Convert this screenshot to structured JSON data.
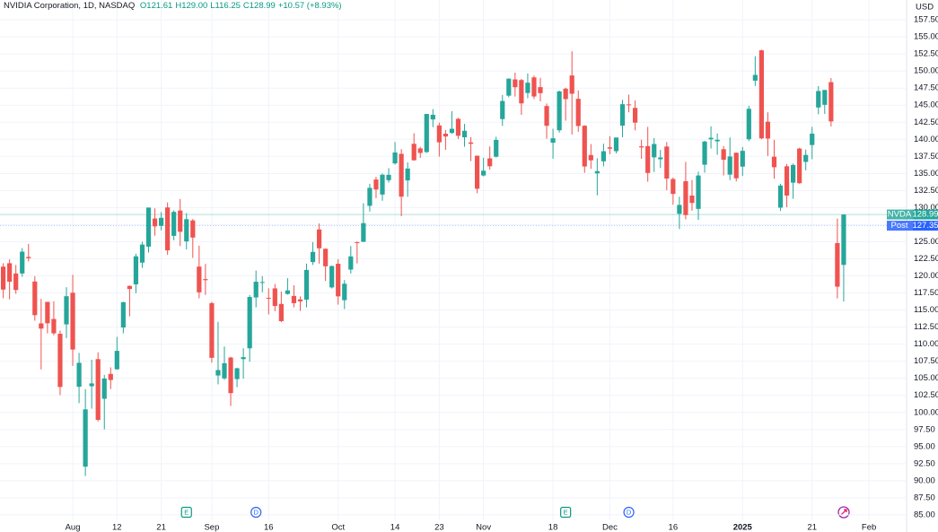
{
  "chart_data": {
    "type": "candlestick",
    "title": "NVIDIA Corporation, 1D, NASDAQ",
    "legend_values": [
      "O121.61",
      "H129.00",
      "L116.25",
      "C128.99",
      "+10.57 (+8.93%)"
    ],
    "currency": "USD",
    "up_color": "#26a69a",
    "down_color": "#ef5350",
    "grid": true,
    "categories": [
      null,
      null,
      null,
      null,
      null,
      null,
      null,
      null,
      null,
      null,
      null,
      "Aug",
      null,
      null,
      null,
      null,
      null,
      null,
      "12",
      null,
      null,
      null,
      null,
      null,
      null,
      "21",
      null,
      null,
      null,
      null,
      null,
      null,
      null,
      "Sep",
      null,
      null,
      null,
      null,
      null,
      null,
      null,
      null,
      "16",
      null,
      null,
      null,
      null,
      null,
      null,
      null,
      null,
      null,
      null,
      "Oct",
      null,
      null,
      null,
      null,
      null,
      null,
      null,
      null,
      "14",
      null,
      null,
      null,
      null,
      null,
      null,
      "23",
      null,
      null,
      null,
      null,
      null,
      null,
      "Nov",
      null,
      null,
      null,
      null,
      null,
      null,
      null,
      null,
      null,
      null,
      "18",
      null,
      null,
      null,
      null,
      null,
      null,
      null,
      null,
      "Dec",
      null,
      null,
      null,
      null,
      null,
      null,
      null,
      null,
      null,
      "16",
      null,
      null,
      null,
      null,
      null,
      null,
      null,
      null,
      null,
      null,
      "2025",
      null,
      null,
      null,
      null,
      null,
      null,
      null,
      null,
      null,
      null,
      "21",
      null,
      null,
      null,
      null,
      null,
      null,
      null,
      null,
      "Feb"
    ],
    "open": [
      121.35,
      121.85,
      120.35,
      120.35,
      122.78,
      119.17,
      113.04,
      116.19,
      113.69,
      111.52,
      112.9,
      117.53,
      103.76,
      92.06,
      103.84,
      107.81,
      102.0,
      105.64,
      106.32,
      112.44,
      118.53,
      118.76,
      121.94,
      124.28,
      128.4,
      127.32,
      130.02,
      125.86,
      129.57,
      125.05,
      128.12,
      121.36,
      119.53,
      116.01,
      105.41,
      104.99,
      108.04,
      104.88,
      107.81,
      109.39,
      116.84,
      119.08,
      116.79,
      118.17,
      115.89,
      117.35,
      117.06,
      116.55,
      116.52,
      122.02,
      126.8,
      123.97,
      118.31,
      121.77,
      116.44,
      120.92,
      124.94,
      124.99,
      130.26,
      134.11,
      131.91,
      134.01,
      136.47,
      137.87,
      133.98,
      139.34,
      138.67,
      138.13,
      142.91,
      142.03,
      140.82,
      140.93,
      143.0,
      140.29,
      139.54,
      137.6,
      134.7,
      137.21,
      137.45,
      142.96,
      146.39,
      148.77,
      148.68,
      146.78,
      149.07,
      147.64,
      144.87,
      139.5,
      141.32,
      147.41,
      149.35,
      145.93,
      141.99,
      137.7,
      135.01,
      136.78,
      138.83,
      138.26,
      142.0,
      145.11,
      144.6,
      138.97,
      139.01,
      137.36,
      137.08,
      138.94,
      134.18,
      129.09,
      133.86,
      131.76,
      129.81,
      136.28,
      140.0,
      139.7,
      138.55,
      134.83,
      138.03,
      136.0,
      140.01,
      148.59,
      153.03,
      142.58,
      137.45,
      129.99,
      136.05,
      133.65,
      138.64,
      136.69,
      139.16,
      144.66,
      145.05,
      148.37,
      124.8,
      121.61,
      null,
      null,
      null,
      null
    ],
    "high": [
      121.85,
      122.4,
      121.6,
      124.07,
      124.69,
      119.95,
      116.63,
      116.2,
      116.28,
      111.99,
      118.34,
      120.16,
      108.72,
      103.41,
      107.71,
      108.8,
      105.5,
      106.6,
      111.07,
      116.23,
      118.6,
      123.24,
      125.0,
      130.0,
      129.88,
      129.35,
      130.75,
      129.6,
      131.26,
      129.2,
      128.33,
      124.43,
      121.75,
      116.21,
      113.27,
      109.65,
      108.15,
      106.55,
      109.4,
      117.19,
      120.79,
      119.96,
      118.18,
      118.8,
      117.7,
      119.66,
      118.62,
      116.99,
      121.8,
      124.94,
      127.67,
      124.03,
      121.5,
      122.44,
      119.38,
      124.36,
      125.04,
      130.64,
      133.48,
      134.52,
      135.0,
      135.78,
      139.6,
      138.57,
      136.62,
      140.89,
      138.9,
      143.71,
      144.42,
      142.43,
      141.35,
      144.13,
      143.14,
      142.26,
      140.33,
      137.61,
      137.31,
      138.96,
      140.37,
      146.49,
      148.93,
      149.77,
      148.85,
      149.65,
      149.33,
      149.0,
      145.24,
      141.55,
      147.13,
      147.56,
      152.89,
      147.16,
      142.05,
      139.3,
      137.22,
      139.35,
      140.45,
      140.08,
      145.79,
      146.54,
      145.7,
      139.95,
      141.82,
      140.17,
      138.44,
      139.6,
      134.4,
      131.59,
      136.7,
      134.03,
      135.28,
      139.79,
      141.9,
      140.85,
      139.02,
      140.27,
      138.07,
      138.88,
      144.9,
      152.16,
      153.13,
      143.95,
      139.92,
      133.49,
      136.38,
      136.45,
      138.75,
      138.5,
      141.83,
      147.79,
      147.23,
      148.97,
      128.4,
      129.0,
      null,
      null,
      null,
      null
    ],
    "low": [
      116.72,
      116.56,
      117.37,
      119.86,
      122.1,
      113.44,
      106.3,
      111.58,
      111.3,
      102.54,
      110.88,
      106.81,
      101.37,
      90.69,
      100.55,
      98.69,
      97.52,
      103.43,
      106.26,
      111.58,
      114.07,
      117.47,
      121.18,
      123.42,
      125.89,
      126.66,
      123.1,
      125.22,
      124.37,
      123.88,
      122.64,
      116.71,
      117.22,
      107.29,
      104.12,
      104.76,
      100.95,
      103.69,
      104.95,
      107.42,
      115.38,
      117.6,
      114.36,
      114.83,
      113.22,
      117.25,
      115.39,
      114.86,
      115.38,
      121.61,
      121.8,
      119.26,
      118.15,
      115.79,
      115.14,
      120.34,
      121.83,
      124.95,
      129.42,
      131.38,
      131.0,
      133.66,
      136.3,
      128.74,
      131.58,
      136.87,
      137.28,
      138.0,
      141.78,
      137.46,
      138.46,
      140.8,
      140.05,
      138.9,
      136.81,
      132.11,
      134.57,
      135.57,
      137.33,
      141.96,
      146.17,
      146.26,
      143.57,
      146.01,
      145.9,
      145.55,
      140.08,
      137.15,
      140.99,
      142.73,
      140.7,
      141.1,
      135.1,
      135.67,
      131.8,
      136.05,
      137.82,
      137.95,
      140.3,
      143.95,
      141.31,
      137.13,
      133.79,
      135.21,
      135.8,
      132.54,
      130.42,
      126.86,
      128.28,
      129.55,
      128.22,
      135.12,
      138.65,
      137.73,
      134.71,
      134.02,
      133.83,
      134.63,
      139.73,
      147.82,
      140.01,
      137.56,
      134.22,
      129.51,
      130.05,
      131.29,
      133.49,
      135.46,
      137.09,
      143.67,
      143.72,
      141.88,
      116.7,
      116.25,
      null,
      null,
      null,
      null
    ],
    "close": [
      117.99,
      119.14,
      117.93,
      123.54,
      122.59,
      114.25,
      112.28,
      113.06,
      111.59,
      103.73,
      117.02,
      109.21,
      107.27,
      100.45,
      104.25,
      98.91,
      104.97,
      104.75,
      109.02,
      116.14,
      118.08,
      122.86,
      124.58,
      130.0,
      127.25,
      128.5,
      123.74,
      129.37,
      126.46,
      128.3,
      125.61,
      117.59,
      119.37,
      108.0,
      106.21,
      107.21,
      102.83,
      106.47,
      108.1,
      116.91,
      119.14,
      119.1,
      116.78,
      115.59,
      113.37,
      117.87,
      116.0,
      116.26,
      120.87,
      123.51,
      124.04,
      121.4,
      121.44,
      117.0,
      118.85,
      122.85,
      124.92,
      127.72,
      132.89,
      132.65,
      134.81,
      134.8,
      138.07,
      131.6,
      135.72,
      136.93,
      138.0,
      143.71,
      143.59,
      139.56,
      140.41,
      141.54,
      140.52,
      141.25,
      139.34,
      132.76,
      135.4,
      136.05,
      139.91,
      145.61,
      148.88,
      147.63,
      145.26,
      148.29,
      146.27,
      146.76,
      141.98,
      140.15,
      147.01,
      145.89,
      146.67,
      141.95,
      136.02,
      136.92,
      135.34,
      138.25,
      138.63,
      140.26,
      145.14,
      145.06,
      142.44,
      138.81,
      135.07,
      139.31,
      137.34,
      134.25,
      132.0,
      130.39,
      128.91,
      130.68,
      134.7,
      139.67,
      140.22,
      139.93,
      137.01,
      137.49,
      134.29,
      138.31,
      144.47,
      149.43,
      140.14,
      140.11,
      135.91,
      133.23,
      131.76,
      136.24,
      133.57,
      137.71,
      140.83,
      147.07,
      147.22,
      142.62,
      118.42,
      128.99,
      null,
      null,
      null,
      null
    ],
    "ylim": [
      84.2,
      160.4
    ],
    "yticks": [
      {
        "value": 85,
        "label": "85.00"
      },
      {
        "value": 87.5,
        "label": "87.50"
      },
      {
        "value": 90,
        "label": "90.00"
      },
      {
        "value": 92.5,
        "label": "92.50"
      },
      {
        "value": 95,
        "label": "95.00"
      },
      {
        "value": 97.5,
        "label": "97.50"
      },
      {
        "value": 100,
        "label": "100.00"
      },
      {
        "value": 102.5,
        "label": "102.50"
      },
      {
        "value": 105,
        "label": "105.00"
      },
      {
        "value": 107.5,
        "label": "107.50"
      },
      {
        "value": 110,
        "label": "110.00"
      },
      {
        "value": 112.5,
        "label": "112.50"
      },
      {
        "value": 115,
        "label": "115.00"
      },
      {
        "value": 117.5,
        "label": "117.50"
      },
      {
        "value": 120,
        "label": "120.00"
      },
      {
        "value": 122.5,
        "label": "122.50"
      },
      {
        "value": 125,
        "label": "125.00"
      },
      {
        "value": 127.5,
        "label": "127.50"
      },
      {
        "value": 130,
        "label": "130.00"
      },
      {
        "value": 132.5,
        "label": "132.50"
      },
      {
        "value": 135,
        "label": "135.00"
      },
      {
        "value": 137.5,
        "label": "137.50"
      },
      {
        "value": 140,
        "label": "140.00"
      },
      {
        "value": 142.5,
        "label": "142.50"
      },
      {
        "value": 145,
        "label": "145.00"
      },
      {
        "value": 147.5,
        "label": "147.50"
      },
      {
        "value": 150,
        "label": "150.00"
      },
      {
        "value": 152.5,
        "label": "152.50"
      },
      {
        "value": 155,
        "label": "155.00"
      },
      {
        "value": 157.5,
        "label": "157.50"
      }
    ],
    "price_tags": [
      {
        "name": "NVDA",
        "value": 128.99,
        "label": "128.99",
        "color": "#26a69a"
      },
      {
        "name": "Post",
        "value": 127.35,
        "label": "127.35",
        "color": "#2962ff"
      }
    ],
    "events": [
      {
        "label": "E",
        "category_index": 29,
        "color": "#089981"
      },
      {
        "label": "D",
        "category_index": 40,
        "color": "#2962ff"
      },
      {
        "label": "E",
        "category_index": 89,
        "color": "#089981"
      },
      {
        "label": "D",
        "category_index": 99,
        "color": "#2962ff"
      }
    ]
  }
}
